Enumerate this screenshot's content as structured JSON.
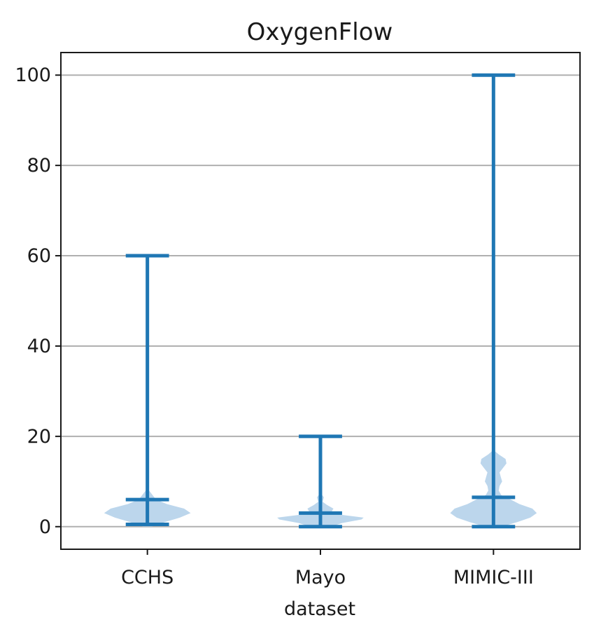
{
  "chart_data": {
    "type": "violin",
    "title": "OxygenFlow",
    "xlabel": "dataset",
    "ylabel": "",
    "ylim": [
      -5,
      105
    ],
    "yticks": [
      0,
      20,
      40,
      60,
      80,
      100
    ],
    "grid": "y",
    "color": "#1f77b4",
    "body_color": "#a6c8e6",
    "categories": [
      "CCHS",
      "Mayo",
      "MIMIC-III"
    ],
    "series": [
      {
        "category": "CCHS",
        "min": 0.5,
        "median": 6,
        "max": 60,
        "density": [
          [
            0,
            0.1
          ],
          [
            1,
            0.4
          ],
          [
            2,
            0.75
          ],
          [
            3,
            1.0
          ],
          [
            4,
            0.85
          ],
          [
            5,
            0.45
          ],
          [
            6,
            0.2
          ],
          [
            7,
            0.12
          ],
          [
            8,
            0.04
          ],
          [
            9,
            0
          ]
        ]
      },
      {
        "category": "Mayo",
        "min": 0,
        "median": 3,
        "max": 20,
        "density": [
          [
            0,
            0.25
          ],
          [
            0.8,
            0.5
          ],
          [
            1.6,
            0.95
          ],
          [
            2,
            1.0
          ],
          [
            2.6,
            0.5
          ],
          [
            3.2,
            0.25
          ],
          [
            4,
            0.3
          ],
          [
            4.8,
            0.15
          ],
          [
            5.5,
            0.05
          ],
          [
            6.5,
            0.08
          ],
          [
            7.5,
            0
          ]
        ]
      },
      {
        "category": "MIMIC-III",
        "min": 0,
        "median": 6.5,
        "max": 100,
        "density": [
          [
            0,
            0.2
          ],
          [
            1,
            0.55
          ],
          [
            2,
            0.85
          ],
          [
            3,
            1.0
          ],
          [
            4,
            0.9
          ],
          [
            5,
            0.6
          ],
          [
            6,
            0.4
          ],
          [
            7,
            0.18
          ],
          [
            8,
            0.12
          ],
          [
            9,
            0.14
          ],
          [
            10,
            0.2
          ],
          [
            11,
            0.17
          ],
          [
            12,
            0.14
          ],
          [
            13,
            0.22
          ],
          [
            14,
            0.3
          ],
          [
            15,
            0.28
          ],
          [
            16,
            0.12
          ],
          [
            17,
            0
          ]
        ]
      }
    ]
  }
}
